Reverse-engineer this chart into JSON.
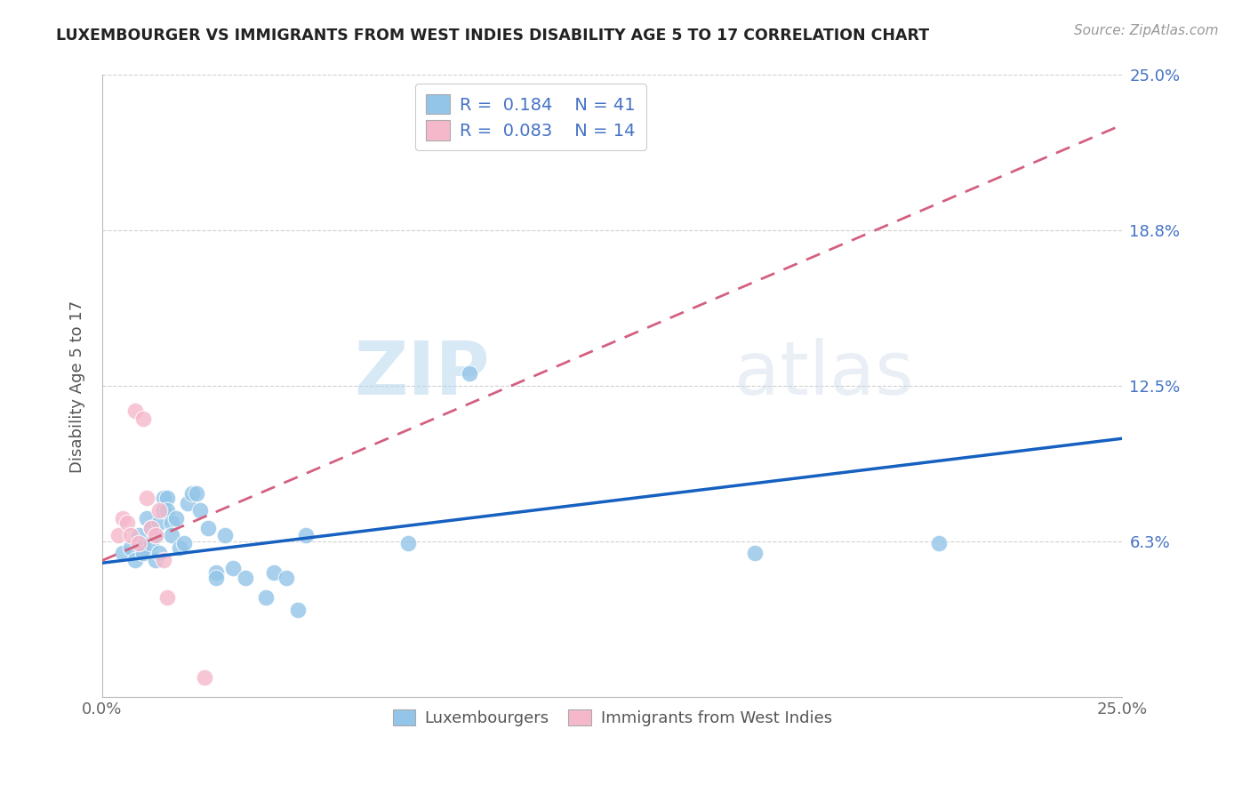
{
  "title": "LUXEMBOURGER VS IMMIGRANTS FROM WEST INDIES DISABILITY AGE 5 TO 17 CORRELATION CHART",
  "source": "Source: ZipAtlas.com",
  "ylabel": "Disability Age 5 to 17",
  "xlim": [
    0.0,
    0.25
  ],
  "ylim": [
    0.0,
    0.25
  ],
  "blue_R": "0.184",
  "blue_N": "41",
  "pink_R": "0.083",
  "pink_N": "14",
  "legend_label1": "Luxembourgers",
  "legend_label2": "Immigrants from West Indies",
  "blue_color": "#92c5e8",
  "pink_color": "#f5b8cb",
  "blue_line_color": "#1560c0",
  "pink_line_color": "#d46080",
  "watermark_zip": "ZIP",
  "watermark_atlas": "atlas",
  "blue_points_x": [
    0.005,
    0.007,
    0.008,
    0.009,
    0.01,
    0.01,
    0.011,
    0.012,
    0.012,
    0.013,
    0.013,
    0.014,
    0.014,
    0.015,
    0.015,
    0.016,
    0.016,
    0.017,
    0.017,
    0.018,
    0.019,
    0.02,
    0.021,
    0.022,
    0.023,
    0.024,
    0.026,
    0.028,
    0.028,
    0.03,
    0.032,
    0.035,
    0.04,
    0.042,
    0.045,
    0.048,
    0.05,
    0.075,
    0.09,
    0.16,
    0.205
  ],
  "blue_points_y": [
    0.058,
    0.06,
    0.055,
    0.065,
    0.06,
    0.058,
    0.072,
    0.068,
    0.062,
    0.065,
    0.055,
    0.07,
    0.058,
    0.08,
    0.075,
    0.08,
    0.075,
    0.07,
    0.065,
    0.072,
    0.06,
    0.062,
    0.078,
    0.082,
    0.082,
    0.075,
    0.068,
    0.05,
    0.048,
    0.065,
    0.052,
    0.048,
    0.04,
    0.05,
    0.048,
    0.035,
    0.065,
    0.062,
    0.13,
    0.058,
    0.062
  ],
  "pink_points_x": [
    0.004,
    0.005,
    0.006,
    0.007,
    0.008,
    0.009,
    0.01,
    0.011,
    0.012,
    0.013,
    0.014,
    0.015,
    0.016,
    0.025
  ],
  "pink_points_y": [
    0.065,
    0.072,
    0.07,
    0.065,
    0.115,
    0.062,
    0.112,
    0.08,
    0.068,
    0.065,
    0.075,
    0.055,
    0.04,
    0.008
  ],
  "blue_line_x0": 0.0,
  "blue_line_y0": 0.054,
  "blue_line_x1": 0.25,
  "blue_line_y1": 0.104,
  "pink_line_x0": 0.0,
  "pink_line_y0": 0.055,
  "pink_line_x1": 0.25,
  "pink_line_y1": 0.23
}
